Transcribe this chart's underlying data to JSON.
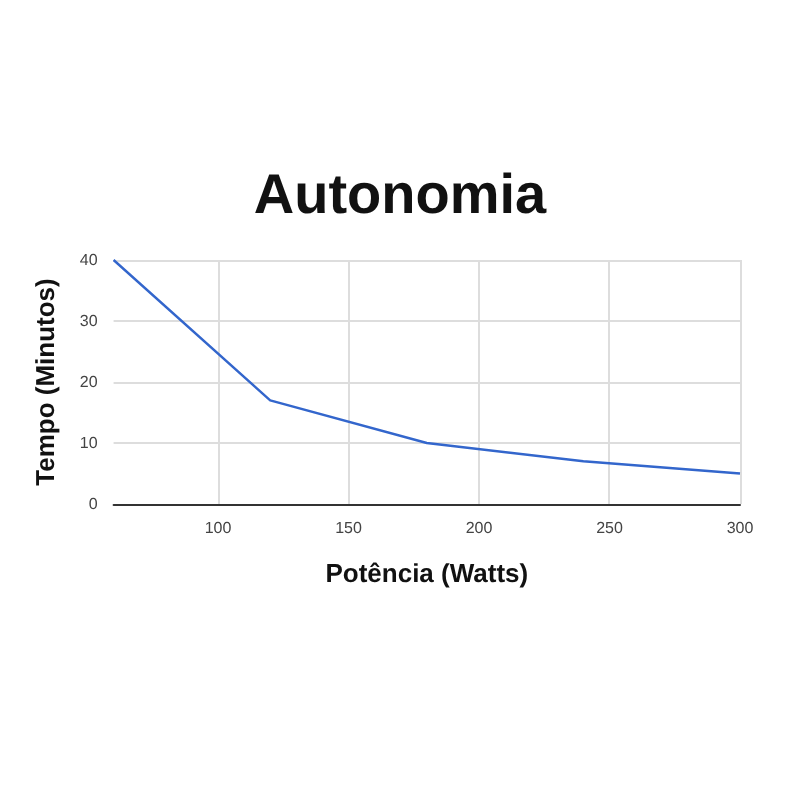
{
  "chart_data": {
    "type": "line",
    "title": "Autonomia",
    "xlabel": "Potência (Watts)",
    "ylabel": "Tempo (Minutos)",
    "x": [
      60,
      120,
      180,
      240,
      300
    ],
    "series": [
      {
        "color": "#3366cc",
        "values": [
          40,
          17,
          10,
          7,
          5
        ]
      }
    ],
    "xlim": [
      60,
      300
    ],
    "xticks": [
      100,
      150,
      200,
      250,
      300
    ],
    "ylim": [
      0,
      40
    ],
    "yticks": [
      0,
      10,
      20,
      30,
      40
    ],
    "grid": true,
    "marker": "none",
    "line_style": "solid"
  }
}
